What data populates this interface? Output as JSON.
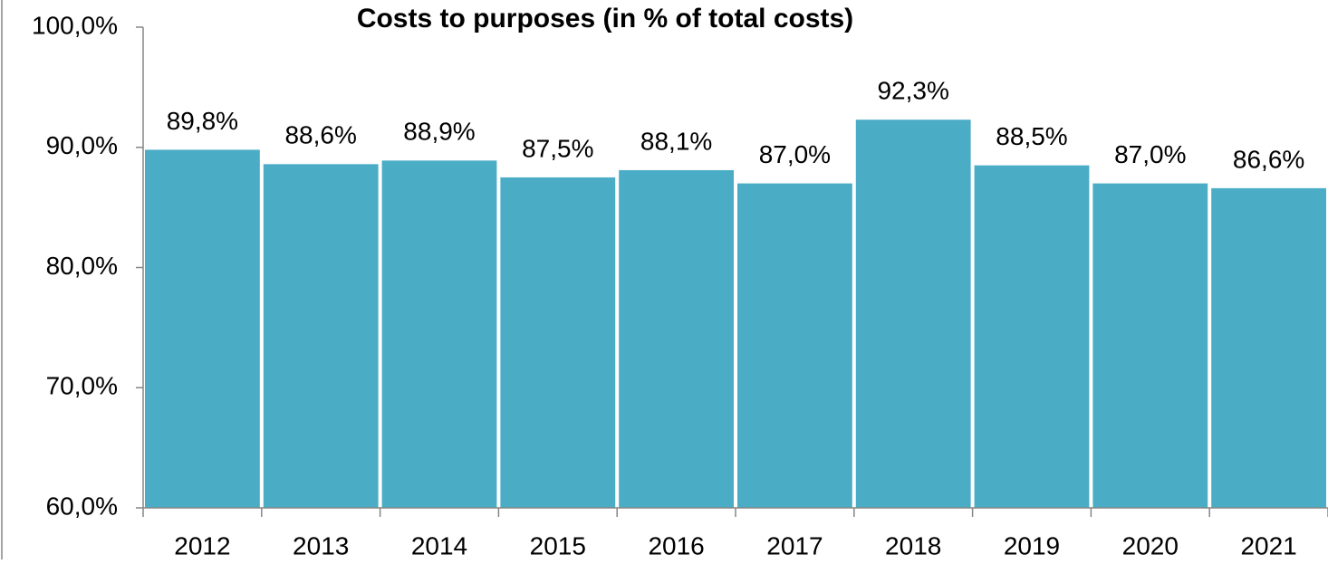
{
  "chart_data": {
    "type": "bar",
    "title": "Costs to purposes (in % of total costs)",
    "categories": [
      "2012",
      "2013",
      "2014",
      "2015",
      "2016",
      "2017",
      "2018",
      "2019",
      "2020",
      "2021"
    ],
    "values": [
      89.8,
      88.6,
      88.9,
      87.5,
      88.1,
      87.0,
      92.3,
      88.5,
      87.0,
      86.6
    ],
    "value_labels": [
      "89,8%",
      "88,6%",
      "88,9%",
      "87,5%",
      "88,1%",
      "87,0%",
      "92,3%",
      "88,5%",
      "87,0%",
      "86,6%"
    ],
    "color": "#4bacc6",
    "ylim": [
      60,
      100
    ],
    "yticks": [
      {
        "value": 60,
        "label": "60,0%"
      },
      {
        "value": 70,
        "label": "70,0%"
      },
      {
        "value": 80,
        "label": "80,0%"
      },
      {
        "value": 90,
        "label": "90,0%"
      },
      {
        "value": 100,
        "label": "100,0%"
      }
    ],
    "grid": false
  }
}
